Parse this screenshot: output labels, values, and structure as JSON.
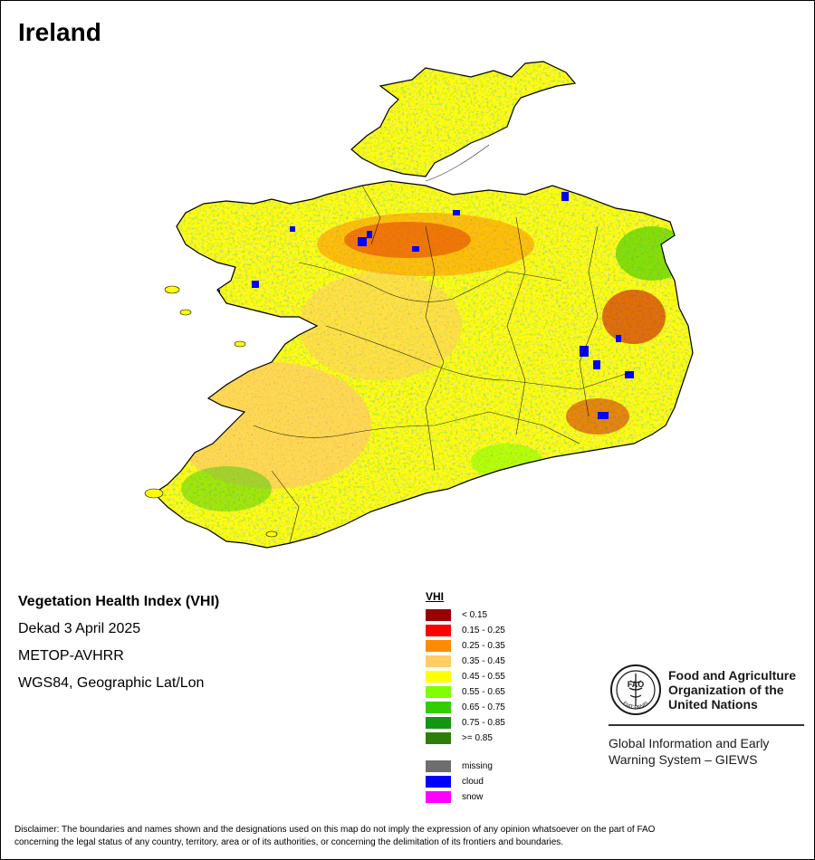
{
  "map": {
    "title": "Ireland"
  },
  "info": {
    "index_name": "Vegetation Health Index (VHI)",
    "period": "Dekad 3 April 2025",
    "sensor": "METOP-AVHRR",
    "projection": "WGS84, Geographic Lat/Lon"
  },
  "legend": {
    "title": "VHI",
    "classes": [
      {
        "label": "< 0.15",
        "color": "#990000"
      },
      {
        "label": "0.15 - 0.25",
        "color": "#ff0000"
      },
      {
        "label": "0.25 - 0.35",
        "color": "#ff8c00"
      },
      {
        "label": "0.35 - 0.45",
        "color": "#ffcc66"
      },
      {
        "label": "0.45 - 0.55",
        "color": "#ffff00"
      },
      {
        "label": "0.55 - 0.65",
        "color": "#80ff00"
      },
      {
        "label": "0.65 - 0.75",
        "color": "#33cc00"
      },
      {
        "label": "0.75 - 0.85",
        "color": "#149614"
      },
      {
        "label": ">= 0.85",
        "color": "#2e7d0a"
      }
    ],
    "special": [
      {
        "label": "missing",
        "color": "#6e6e6e"
      },
      {
        "label": "cloud",
        "color": "#0000ff"
      },
      {
        "label": "snow",
        "color": "#ff00ff"
      }
    ]
  },
  "logo": {
    "org_line1": "Food and Agriculture",
    "org_line2": "Organization of the",
    "org_line3": "United Nations",
    "logo_letters": "FAO",
    "logo_ring_text": "FIAT PANIS",
    "giews_line1": "Global Information and Early",
    "giews_line2": "Warning System – GIEWS"
  },
  "disclaimer": {
    "line1": "Disclaimer: The boundaries and names shown and the designations used on this map do not imply the expression of any opinion whatsoever on the part of FAO",
    "line2": "concerning the legal status of any country, territory, area or of its authorities, or concerning the delimitation of its frontiers and boundaries."
  }
}
